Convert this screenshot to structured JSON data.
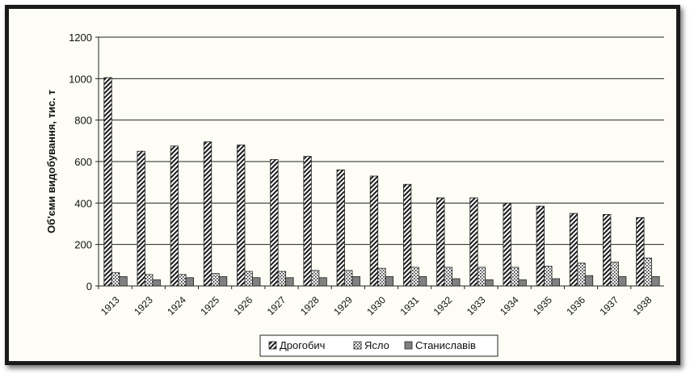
{
  "chart_data": {
    "type": "bar",
    "title": "",
    "xlabel": "",
    "ylabel": "Об'єми видобування, тис. т",
    "ylim": [
      0,
      1200
    ],
    "yticks": [
      0,
      200,
      400,
      600,
      800,
      1000,
      1200
    ],
    "grid": true,
    "legend_position": "bottom",
    "categories": [
      "1913",
      "1923",
      "1924",
      "1925",
      "1926",
      "1927",
      "1928",
      "1929",
      "1930",
      "1931",
      "1932",
      "1933",
      "1934",
      "1935",
      "1936",
      "1937",
      "1938"
    ],
    "series": [
      {
        "name": "Дрогобич",
        "pattern": "diagonal-hatch",
        "color": "#1a1a1a",
        "values": [
          1005,
          650,
          675,
          695,
          680,
          610,
          625,
          560,
          530,
          490,
          425,
          425,
          400,
          385,
          350,
          345,
          330
        ]
      },
      {
        "name": "Ясло",
        "pattern": "dotted",
        "color": "#2b2b2b",
        "values": [
          65,
          55,
          55,
          60,
          70,
          70,
          75,
          75,
          85,
          90,
          90,
          90,
          90,
          95,
          110,
          115,
          135
        ]
      },
      {
        "name": "Станиславів",
        "pattern": "solid-grey",
        "color": "#7f7f7f",
        "values": [
          45,
          30,
          40,
          45,
          40,
          40,
          40,
          45,
          45,
          45,
          35,
          30,
          30,
          35,
          50,
          45,
          45
        ]
      }
    ]
  }
}
